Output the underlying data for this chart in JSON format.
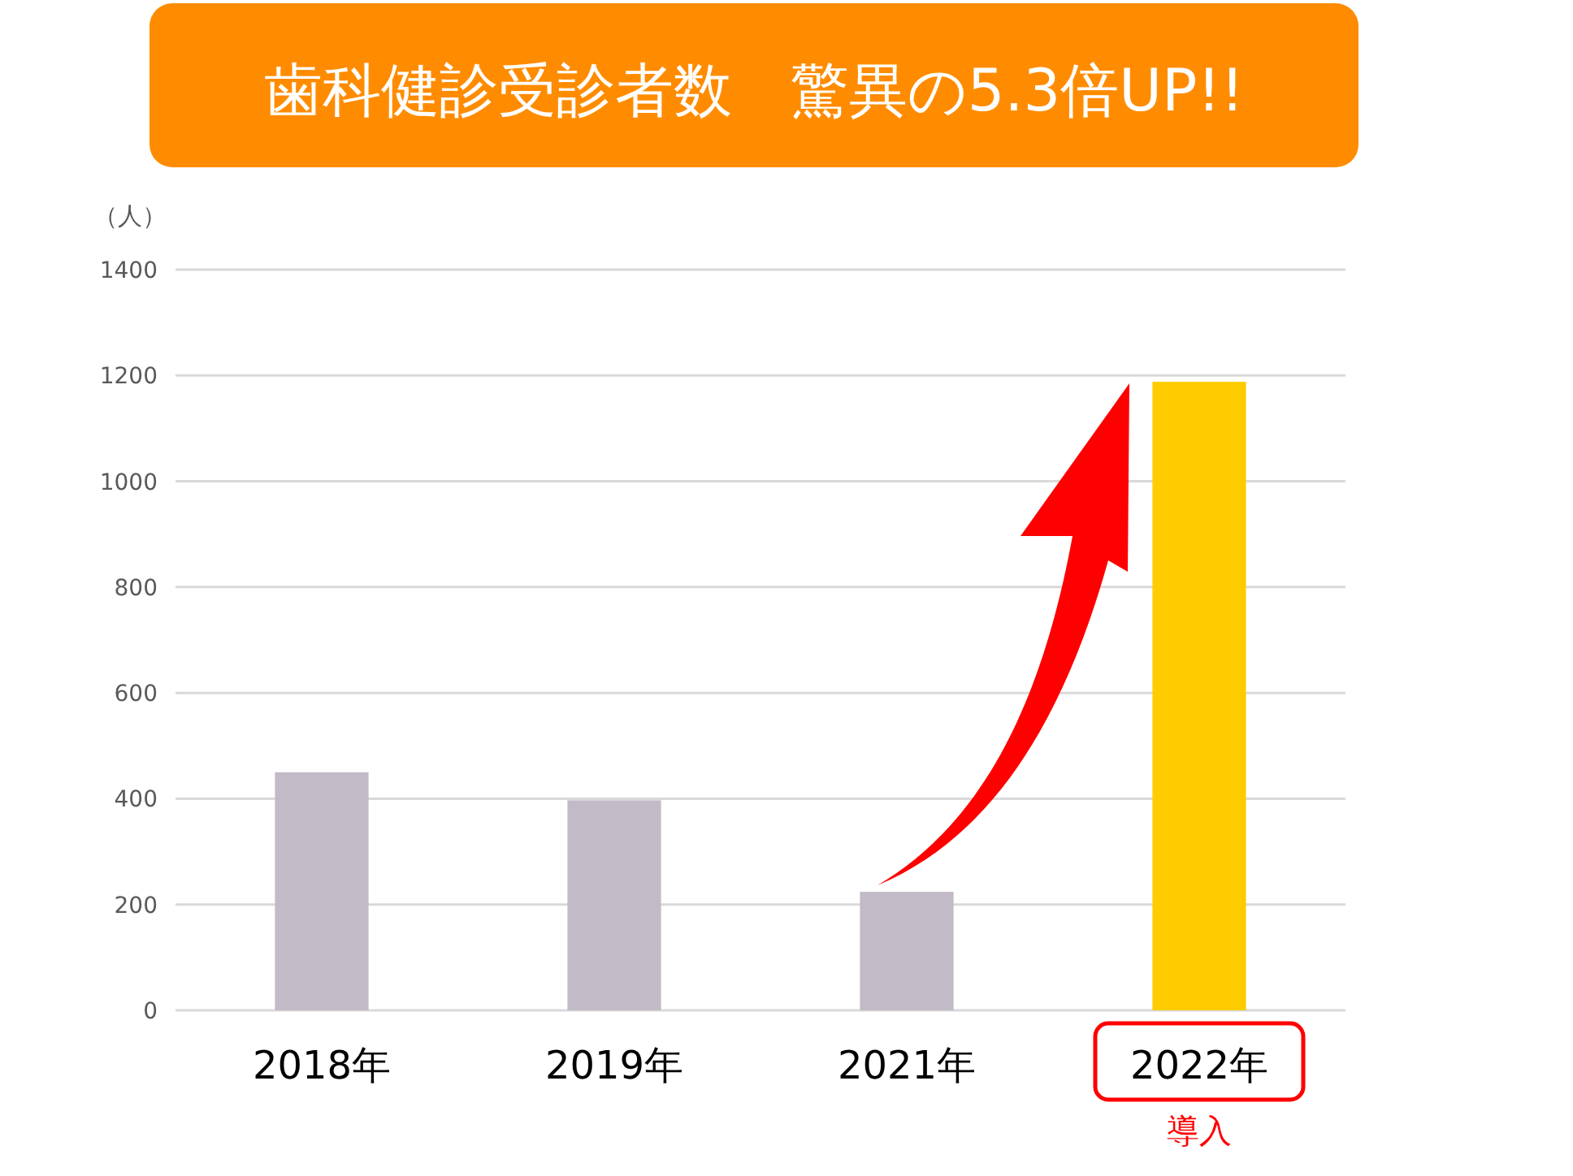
{
  "chart_data": {
    "type": "bar",
    "title": "歯科健診受診者数　驚異の5.3倍UP!!",
    "ylabel": "（人）",
    "categories": [
      "2018年",
      "2019年",
      "2021年",
      "2022年"
    ],
    "values": [
      450,
      397,
      224,
      1188
    ],
    "colors": [
      "#c2bac7",
      "#c2bac7",
      "#c2bac7",
      "#ffcc00"
    ],
    "ylim": [
      0,
      1400
    ],
    "yticks": [
      0,
      200,
      400,
      600,
      800,
      1000,
      1200,
      1400
    ],
    "grid": "y",
    "annotations": [
      "導入"
    ]
  }
}
